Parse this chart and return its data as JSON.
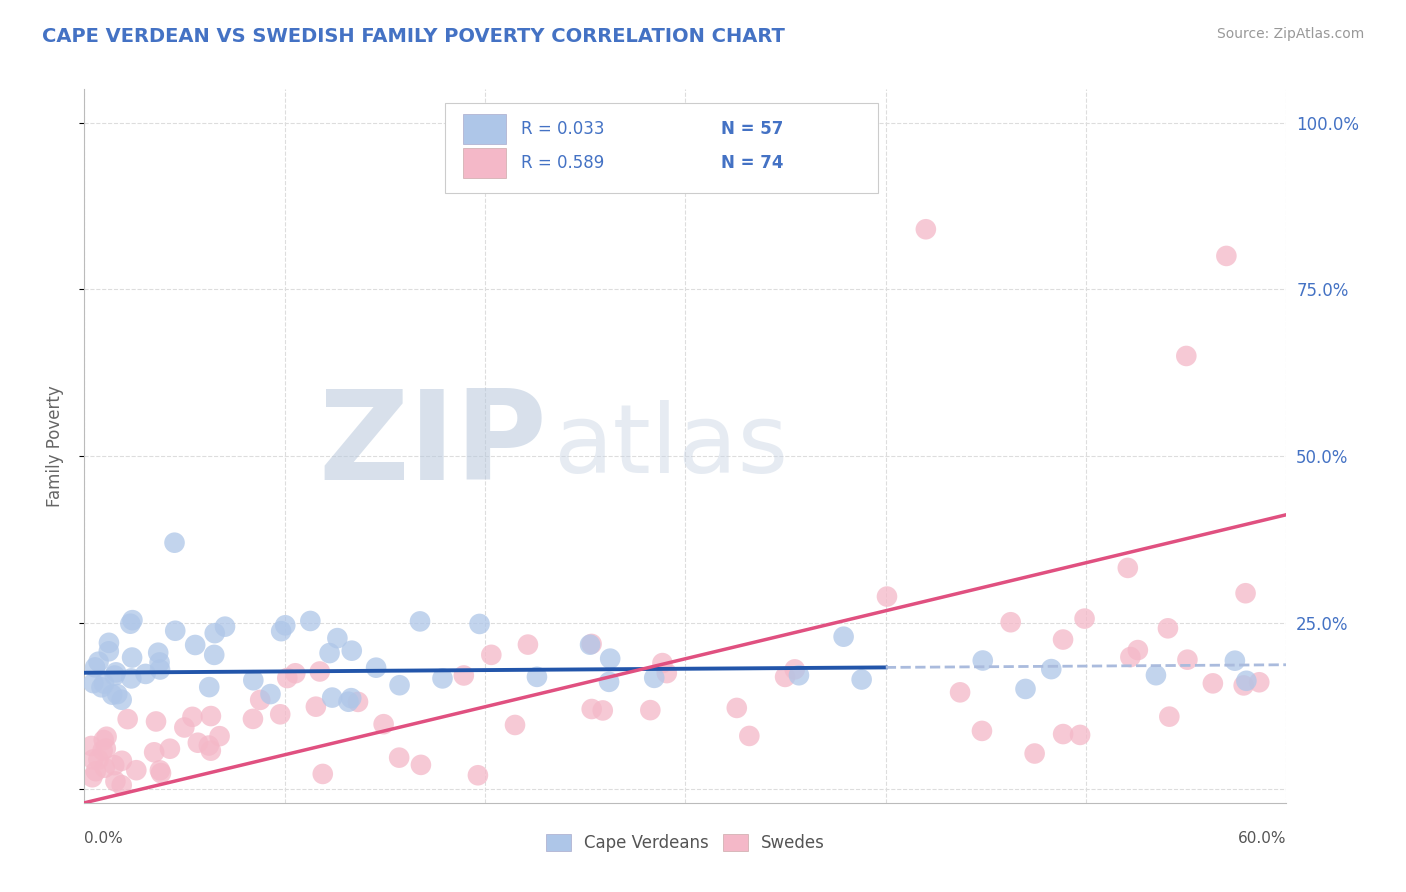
{
  "title": "CAPE VERDEAN VS SWEDISH FAMILY POVERTY CORRELATION CHART",
  "source": "Source: ZipAtlas.com",
  "ylabel": "Family Poverty",
  "xlim": [
    0.0,
    60.0
  ],
  "ylim": [
    -2.0,
    105.0
  ],
  "blue_color": "#aec6e8",
  "pink_color": "#f4b8c8",
  "blue_line_color": "#2255aa",
  "blue_dash_color": "#aabbdd",
  "pink_line_color": "#e05080",
  "accent_color": "#4472c4",
  "source_color": "#999999",
  "watermark_zip": "ZIP",
  "watermark_atlas": "atlas",
  "label_cv": "Cape Verdeans",
  "label_sw": "Swedes",
  "grid_color": "#dddddd",
  "blue_solid_end": 40.0,
  "blue_line_y_intercept": 17.5,
  "blue_line_slope": 0.02,
  "pink_line_y_intercept": -2.0,
  "pink_line_slope": 0.72
}
